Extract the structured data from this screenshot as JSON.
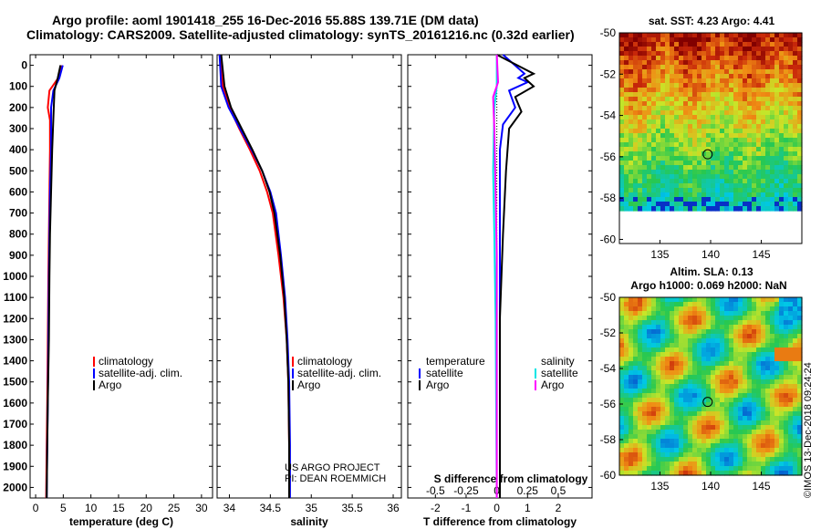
{
  "title_line1": "Argo profile: aoml 1901418_255 16-Dec-2016 55.88S 139.71E (DM data)",
  "title_line2": "Climatology: CARS2009. Satellite-adjusted climatology: synTS_20161216.nc (0.32d earlier)",
  "depth_ticks": [
    "0",
    "100",
    "200",
    "300",
    "400",
    "500",
    "600",
    "700",
    "800",
    "900",
    "1000",
    "1100",
    "1200",
    "1300",
    "1400",
    "1500",
    "1600",
    "1700",
    "1800",
    "1900",
    "2000"
  ],
  "colors": {
    "climatology": "#ff0000",
    "satellite": "#0000ff",
    "argo": "#000000",
    "sat_s": "#00e5e5",
    "argo_s": "#ff00ff"
  },
  "chart_data": [
    {
      "type": "line",
      "xlabel": "temperature (deg C)",
      "x_ticks": [
        "0",
        "5",
        "10",
        "15",
        "20",
        "25",
        "30"
      ],
      "xlim": [
        -1,
        32
      ],
      "ylim": [
        2050,
        -50
      ],
      "y_reversed": true,
      "legend": [
        "climatology",
        "satellite-adj. clim.",
        "Argo"
      ],
      "series": [
        {
          "name": "climatology",
          "points": [
            [
              4.6,
              0
            ],
            [
              4.1,
              60
            ],
            [
              2.5,
              120
            ],
            [
              2.2,
              200
            ],
            [
              2.6,
              260
            ],
            [
              2.6,
              400
            ],
            [
              2.5,
              600
            ],
            [
              2.4,
              800
            ],
            [
              2.3,
              1000
            ],
            [
              2.2,
              1300
            ],
            [
              2.1,
              1600
            ],
            [
              2.0,
              1800
            ],
            [
              1.9,
              2050
            ]
          ]
        },
        {
          "name": "satellite-adj. clim.",
          "points": [
            [
              4.9,
              0
            ],
            [
              4.3,
              60
            ],
            [
              3.2,
              120
            ],
            [
              2.8,
              200
            ],
            [
              2.8,
              400
            ],
            [
              2.6,
              600
            ],
            [
              2.5,
              800
            ],
            [
              2.4,
              1000
            ],
            [
              2.3,
              1300
            ],
            [
              2.2,
              1600
            ],
            [
              2.1,
              1800
            ],
            [
              2.0,
              2050
            ]
          ]
        },
        {
          "name": "Argo",
          "points": [
            [
              4.5,
              0
            ],
            [
              4.0,
              60
            ],
            [
              3.4,
              120
            ],
            [
              3.2,
              250
            ],
            [
              3.0,
              400
            ],
            [
              2.8,
              600
            ],
            [
              2.6,
              800
            ],
            [
              2.5,
              1000
            ],
            [
              2.4,
              1300
            ],
            [
              2.2,
              1600
            ],
            [
              2.1,
              1800
            ],
            [
              2.0,
              2050
            ]
          ]
        }
      ]
    },
    {
      "type": "line",
      "xlabel": "salinity",
      "x_ticks": [
        "34",
        "34.5",
        "35",
        "35.5",
        "36"
      ],
      "xlim": [
        33.85,
        36.1
      ],
      "ylim": [
        2050,
        -50
      ],
      "y_reversed": true,
      "legend": [
        "climatology",
        "satellite-adj. clim.",
        "Argo"
      ],
      "annotation": [
        "US ARGO PROJECT",
        "PI: DEAN ROEMMICH"
      ],
      "series": [
        {
          "name": "climatology",
          "points": [
            [
              33.88,
              -50
            ],
            [
              33.92,
              100
            ],
            [
              34.0,
              200
            ],
            [
              34.12,
              300
            ],
            [
              34.25,
              400
            ],
            [
              34.37,
              500
            ],
            [
              34.46,
              600
            ],
            [
              34.53,
              700
            ],
            [
              34.6,
              900
            ],
            [
              34.66,
              1100
            ],
            [
              34.7,
              1300
            ],
            [
              34.72,
              1500
            ],
            [
              34.73,
              1800
            ],
            [
              34.73,
              2050
            ]
          ]
        },
        {
          "name": "satellite-adj. clim.",
          "points": [
            [
              33.88,
              -50
            ],
            [
              33.9,
              100
            ],
            [
              33.99,
              200
            ],
            [
              34.13,
              300
            ],
            [
              34.27,
              400
            ],
            [
              34.4,
              500
            ],
            [
              34.5,
              600
            ],
            [
              34.57,
              700
            ],
            [
              34.63,
              900
            ],
            [
              34.68,
              1100
            ],
            [
              34.71,
              1300
            ],
            [
              34.73,
              1500
            ],
            [
              34.74,
              1800
            ],
            [
              34.74,
              2050
            ]
          ]
        },
        {
          "name": "Argo",
          "points": [
            [
              33.9,
              -50
            ],
            [
              33.94,
              100
            ],
            [
              34.02,
              200
            ],
            [
              34.15,
              300
            ],
            [
              34.28,
              400
            ],
            [
              34.4,
              500
            ],
            [
              34.49,
              600
            ],
            [
              34.55,
              700
            ],
            [
              34.62,
              900
            ],
            [
              34.67,
              1100
            ],
            [
              34.7,
              1300
            ],
            [
              34.72,
              1500
            ],
            [
              34.73,
              1800
            ],
            [
              34.73,
              2050
            ]
          ]
        }
      ]
    },
    {
      "type": "line",
      "xlabel": "T difference from climatology",
      "xlabel_top": "S difference from climatology",
      "x_ticks": [
        "-2",
        "-1",
        "0",
        "1",
        "2"
      ],
      "x_ticks_top": [
        "-0.5",
        "-0.25",
        "0",
        "0.25",
        "0.5"
      ],
      "xlim": [
        -2.9,
        3.1
      ],
      "xlim_top": [
        -0.725,
        0.775
      ],
      "ylim": [
        2050,
        -50
      ],
      "y_reversed": true,
      "legend_left": [
        "temperature",
        "satellite",
        "Argo"
      ],
      "legend_right": [
        "salinity",
        "satellite",
        "Argo"
      ],
      "series": [
        {
          "name": "temperature satellite",
          "axis": "T",
          "points": [
            [
              0.2,
              -50
            ],
            [
              0.9,
              40
            ],
            [
              0.7,
              60
            ],
            [
              1.0,
              80
            ],
            [
              0.4,
              120
            ],
            [
              0.6,
              200
            ],
            [
              0.2,
              280
            ],
            [
              0.1,
              400
            ],
            [
              0.1,
              700
            ],
            [
              0.1,
              1000
            ],
            [
              0.1,
              1500
            ],
            [
              0.1,
              2050
            ]
          ]
        },
        {
          "name": "temperature Argo",
          "axis": "T",
          "points": [
            [
              0.0,
              -50
            ],
            [
              1.2,
              40
            ],
            [
              0.9,
              60
            ],
            [
              1.2,
              100
            ],
            [
              0.6,
              150
            ],
            [
              0.8,
              220
            ],
            [
              0.4,
              300
            ],
            [
              0.3,
              500
            ],
            [
              0.2,
              800
            ],
            [
              0.1,
              1200
            ],
            [
              0.1,
              2050
            ]
          ]
        },
        {
          "name": "salinity satellite",
          "axis": "S",
          "points": [
            [
              0.0,
              -50
            ],
            [
              0.0,
              100
            ],
            [
              -0.02,
              200
            ],
            [
              -0.03,
              500
            ],
            [
              -0.02,
              800
            ],
            [
              -0.01,
              1200
            ],
            [
              0.0,
              2050
            ]
          ]
        },
        {
          "name": "salinity Argo",
          "axis": "S",
          "points": [
            [
              0.0,
              -50
            ],
            [
              0.01,
              80
            ],
            [
              -0.03,
              150
            ],
            [
              -0.02,
              300
            ],
            [
              -0.01,
              600
            ],
            [
              0.0,
              900
            ],
            [
              0.0,
              2050
            ]
          ]
        }
      ]
    },
    {
      "type": "heatmap",
      "title": "sat. SST: 4.23 Argo: 4.41",
      "x_ticks": [
        "135",
        "140",
        "145"
      ],
      "y_ticks": [
        "-50",
        "-52",
        "-54",
        "-56",
        "-58",
        "-60"
      ],
      "xlim": [
        131,
        149
      ],
      "ylim": [
        -60.2,
        -50
      ],
      "marker": {
        "lon": 139.71,
        "lat": -55.88
      }
    },
    {
      "type": "heatmap",
      "title_line1": "Altim. SLA: 0.13",
      "title_line2": "Argo h1000: 0.069 h2000: NaN",
      "x_ticks": [
        "135",
        "140",
        "145"
      ],
      "y_ticks": [
        "-50",
        "-52",
        "-54",
        "-56",
        "-58",
        "-60"
      ],
      "xlim": [
        131,
        149
      ],
      "ylim": [
        -60,
        -50
      ],
      "marker": {
        "lon": 139.71,
        "lat": -55.88
      }
    }
  ],
  "credit": "©IMOS 13-Dec-2018 09:24:24"
}
